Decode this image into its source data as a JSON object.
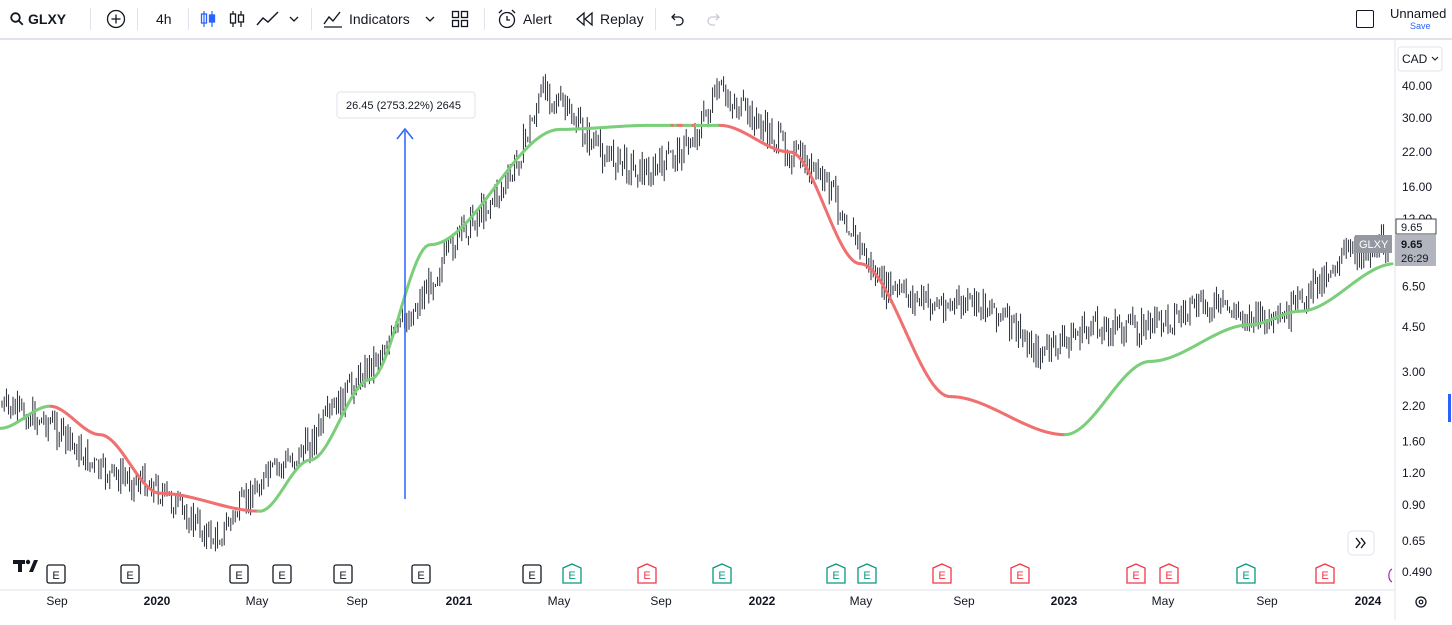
{
  "toolbar": {
    "symbol": "GLXY",
    "interval": "4h",
    "indicators_label": "Indicators",
    "alert_label": "Alert",
    "replay_label": "Replay",
    "layout_name": "Unnamed",
    "save_label": "Save"
  },
  "chart": {
    "currency": "CAD",
    "measure_label": "26.45 (2753.22%) 2645",
    "price_label_top": "9.65",
    "symbol_tag": "GLXY",
    "price_current": "9.65",
    "countdown": "26:29",
    "y_ticks": [
      {
        "label": "40.00",
        "v": 40
      },
      {
        "label": "30.00",
        "v": 30
      },
      {
        "label": "22.00",
        "v": 22
      },
      {
        "label": "16.00",
        "v": 16
      },
      {
        "label": "12.00",
        "v": 12
      },
      {
        "label": "6.50",
        "v": 6.5
      },
      {
        "label": "4.50",
        "v": 4.5
      },
      {
        "label": "3.00",
        "v": 3
      },
      {
        "label": "2.20",
        "v": 2.2
      },
      {
        "label": "1.60",
        "v": 1.6
      },
      {
        "label": "1.20",
        "v": 1.2
      },
      {
        "label": "0.90",
        "v": 0.9
      },
      {
        "label": "0.65",
        "v": 0.65
      },
      {
        "label": "0.490",
        "v": 0.49
      }
    ],
    "x_ticks": [
      {
        "label": "Sep",
        "bold": false
      },
      {
        "label": "2020",
        "bold": true
      },
      {
        "label": "May",
        "bold": false
      },
      {
        "label": "Sep",
        "bold": false
      },
      {
        "label": "2021",
        "bold": true
      },
      {
        "label": "May",
        "bold": false
      },
      {
        "label": "Sep",
        "bold": false
      },
      {
        "label": "2022",
        "bold": true
      },
      {
        "label": "May",
        "bold": false
      },
      {
        "label": "Sep",
        "bold": false
      },
      {
        "label": "2023",
        "bold": true
      },
      {
        "label": "May",
        "bold": false
      },
      {
        "label": "Sep",
        "bold": false
      },
      {
        "label": "2024",
        "bold": true
      }
    ],
    "earnings_markers": [
      {
        "label": "E",
        "kind": "neutral"
      },
      {
        "label": "E",
        "kind": "neutral"
      },
      {
        "label": "E",
        "kind": "neutral"
      },
      {
        "label": "E",
        "kind": "neutral"
      },
      {
        "label": "E",
        "kind": "neutral"
      },
      {
        "label": "E",
        "kind": "neutral"
      },
      {
        "label": "E",
        "kind": "neutral"
      },
      {
        "label": "E",
        "kind": "beat"
      },
      {
        "label": "E",
        "kind": "miss"
      },
      {
        "label": "E",
        "kind": "beat"
      },
      {
        "label": "E",
        "kind": "beat"
      },
      {
        "label": "E",
        "kind": "beat"
      },
      {
        "label": "E",
        "kind": "miss"
      },
      {
        "label": "E",
        "kind": "miss"
      },
      {
        "label": "E",
        "kind": "miss"
      },
      {
        "label": "E",
        "kind": "miss"
      },
      {
        "label": "E",
        "kind": "beat"
      },
      {
        "label": "E",
        "kind": "miss"
      }
    ],
    "colors": {
      "ma_up": "#7bcf7b",
      "ma_down": "#f07070",
      "candles": "#131722",
      "measure": "#2962ff",
      "beat": "#089981",
      "miss": "#f23645"
    }
  },
  "chart_data": {
    "type": "line",
    "series": [
      {
        "x": [
          "2019-08",
          "2019-10",
          "2019-12",
          "2020-02",
          "2020-04",
          "2020-06",
          "2020-08",
          "2020-10",
          "2020-12",
          "2021-02",
          "2021-04",
          "2021-06",
          "2021-08",
          "2021-10",
          "2021-12",
          "2022-02",
          "2022-04",
          "2022-06",
          "2022-08",
          "2022-10",
          "2022-12",
          "2023-02",
          "2023-04",
          "2023-06",
          "2023-08",
          "2023-10",
          "2023-12",
          "2024-01"
        ],
        "values": [
          2.2,
          1.9,
          1.2,
          1.1,
          0.65,
          1.1,
          1.5,
          2.8,
          5.0,
          10.5,
          17,
          40,
          22,
          18,
          24,
          38,
          28,
          16,
          6.5,
          5.5,
          5.5,
          3.5,
          4.5,
          4.5,
          5.5,
          4.6,
          8.5,
          9.65
        ]
      },
      {
        "x": [
          "2019-08",
          "2019-11",
          "2020-02",
          "2020-05",
          "2020-08",
          "2020-11",
          "2021-02",
          "2021-05",
          "2021-08",
          "2021-11",
          "2022-02",
          "2022-05",
          "2022-08",
          "2022-11",
          "2023-02",
          "2023-05",
          "2023-08",
          "2023-11",
          "2024-01"
        ],
        "values": [
          1.8,
          2.2,
          1.7,
          1.0,
          0.85,
          1.35,
          2.8,
          9.5,
          27,
          28,
          28,
          22,
          8,
          2.4,
          1.7,
          3.3,
          4.6,
          5.2,
          8.0
        ]
      }
    ],
    "ylim": [
      0.45,
      48
    ],
    "scale": "log"
  }
}
